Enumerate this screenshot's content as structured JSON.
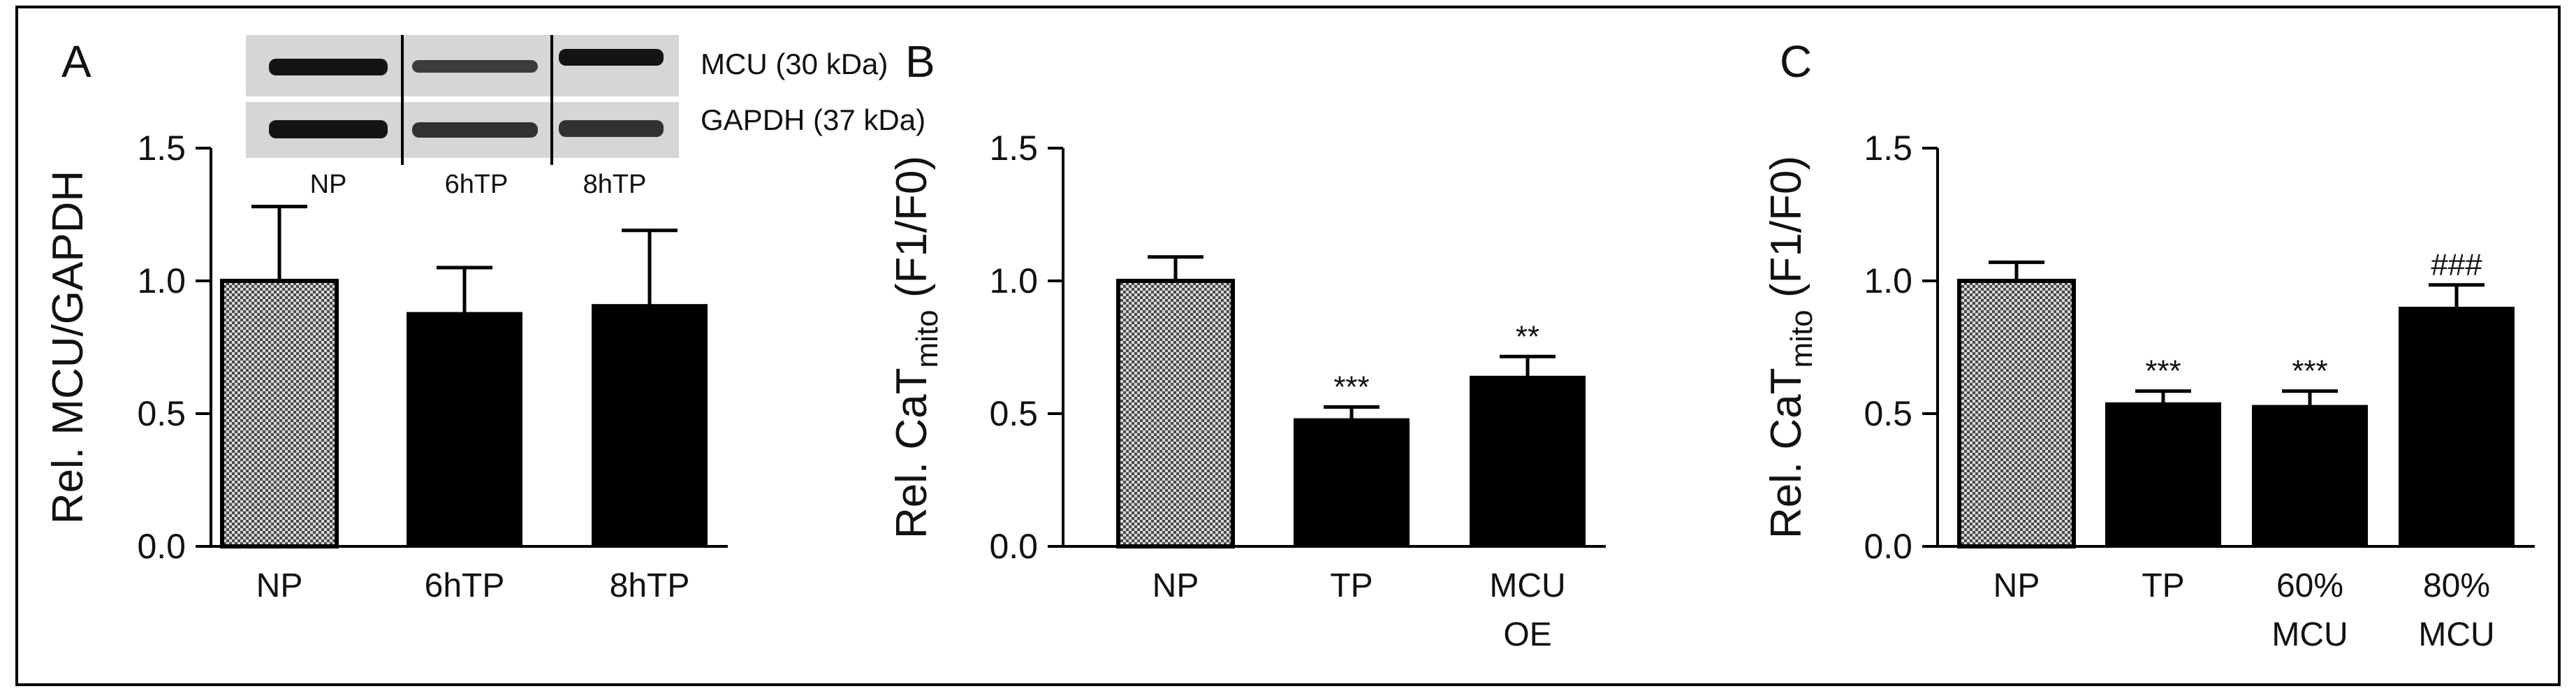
{
  "figure": {
    "colors": {
      "bar": "#000000",
      "axis": "#000000",
      "pattern_light": "#d9d9d9",
      "pattern_dark": "#4a4a4a",
      "blot_background": "#d6d6d6",
      "blot_band": "#141414",
      "border": "#000000"
    }
  },
  "blot": {
    "labels": [
      "MCU (30 kDa)",
      "GAPDH (37 kDa)"
    ],
    "lanes": [
      "NP",
      "6hTP",
      "8hTP"
    ]
  },
  "chart_data": [
    {
      "type": "bar",
      "panel": "A",
      "title": "",
      "categories": [
        [
          "NP"
        ],
        [
          "6hTP"
        ],
        [
          "8hTP"
        ]
      ],
      "values": [
        1.0,
        0.88,
        0.91
      ],
      "errors": [
        0.28,
        0.17,
        0.28
      ],
      "fill": [
        "pattern",
        "solid",
        "solid"
      ],
      "annotations": [
        "",
        "",
        ""
      ],
      "ylabel": {
        "main": "Rel. MCU/GAPDH",
        "sub": "",
        "suffix": ""
      },
      "xlabel": "",
      "ylim": [
        0,
        1.5
      ],
      "yticks": [
        "0.0",
        "0.5",
        "1.0",
        "1.5"
      ],
      "grid": false
    },
    {
      "type": "bar",
      "panel": "B",
      "title": "",
      "categories": [
        [
          "NP"
        ],
        [
          "TP"
        ],
        [
          "MCU",
          "OE"
        ]
      ],
      "values": [
        1.0,
        0.48,
        0.64
      ],
      "errors": [
        0.09,
        0.045,
        0.075
      ],
      "fill": [
        "pattern",
        "solid",
        "solid"
      ],
      "annotations": [
        "",
        "***",
        "**"
      ],
      "ylabel": {
        "main": "Rel. CaT",
        "sub": "mito",
        "suffix": " (F1/F0)"
      },
      "xlabel": "",
      "ylim": [
        0,
        1.5
      ],
      "yticks": [
        "0.0",
        "0.5",
        "1.0",
        "1.5"
      ],
      "grid": false
    },
    {
      "type": "bar",
      "panel": "C",
      "title": "",
      "categories": [
        [
          "NP"
        ],
        [
          "TP"
        ],
        [
          "60%",
          "MCU"
        ],
        [
          "80%",
          "MCU"
        ]
      ],
      "values": [
        1.0,
        0.54,
        0.53,
        0.9
      ],
      "errors": [
        0.07,
        0.045,
        0.055,
        0.085
      ],
      "fill": [
        "pattern",
        "solid",
        "solid",
        "solid"
      ],
      "annotations": [
        "",
        "***",
        "***",
        "###"
      ],
      "ylabel": {
        "main": "Rel. CaT",
        "sub": "mito",
        "suffix": " (F1/F0)"
      },
      "xlabel": "",
      "ylim": [
        0,
        1.5
      ],
      "yticks": [
        "0.0",
        "0.5",
        "1.0",
        "1.5"
      ],
      "grid": false
    }
  ]
}
